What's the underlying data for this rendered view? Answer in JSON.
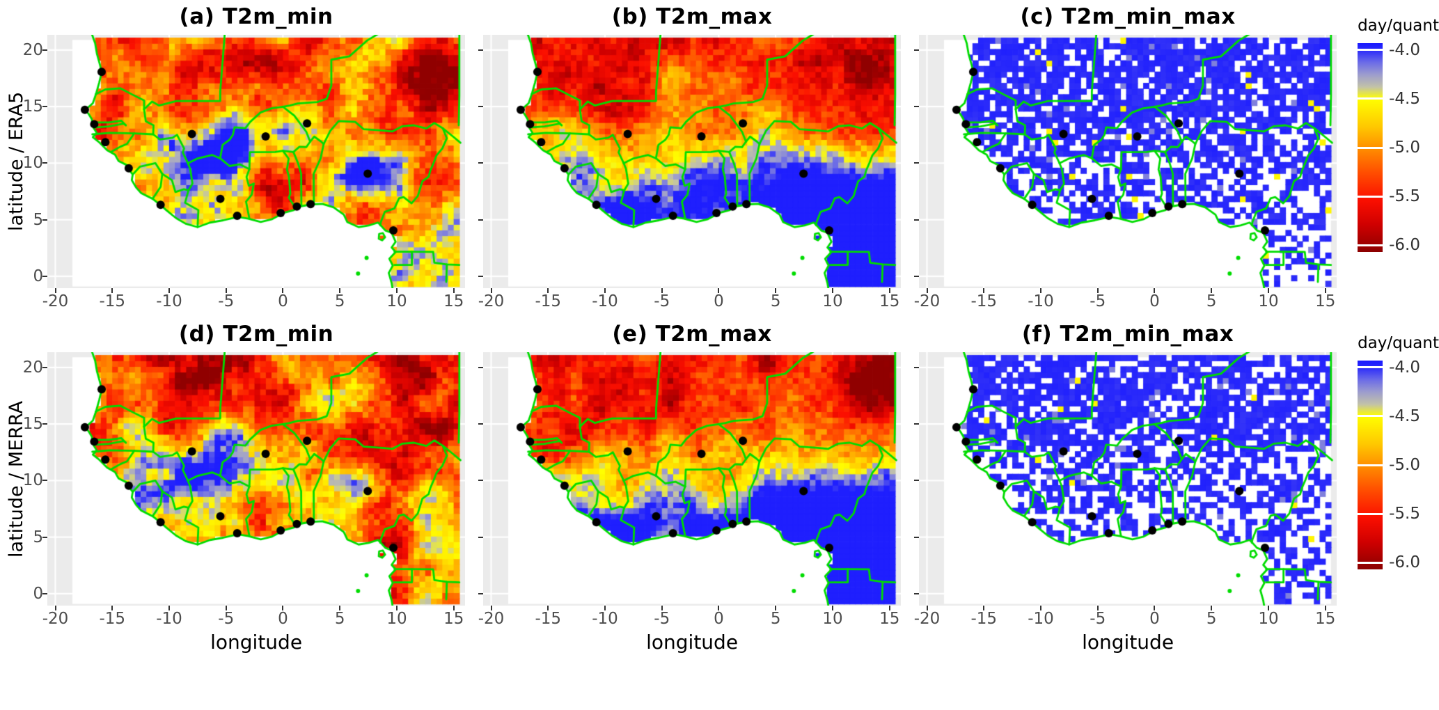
{
  "figure": {
    "rows": [
      {
        "ylabel": "latitude / ERA5",
        "panel_ids": [
          "a",
          "b",
          "c"
        ],
        "show_xlabel": false
      },
      {
        "ylabel": "latitude / MERRA",
        "panel_ids": [
          "d",
          "e",
          "f"
        ],
        "show_xlabel": true
      }
    ]
  },
  "chart_data": {
    "type": "heatmap",
    "description": "Six-panel geographic heatmap figure over West Africa (longitude -20..15, latitude 0..20). Rows compare ERA5 (top) and MERRA (bottom) reanalyses; columns show T2m_min, T2m_max and T2m_min_max CRPS-like scores (day/quant). Green country borders and black station dots overlay each raster. Min/max panels are mostly yellow-orange-red with blue-grey patches; min_max panels are sparse speckled blue near -4.0.",
    "panels": [
      {
        "id": "a",
        "title": "(a) T2m_min",
        "dataset": "ERA5",
        "variable": "T2m_min",
        "pattern": "min",
        "seed": 11,
        "miss_bias": 0
      },
      {
        "id": "b",
        "title": "(b) T2m_max",
        "dataset": "ERA5",
        "variable": "T2m_max",
        "pattern": "max",
        "seed": 21,
        "miss_bias": 0
      },
      {
        "id": "c",
        "title": "(c) T2m_min_max",
        "dataset": "ERA5",
        "variable": "T2m_min_max",
        "pattern": "sparse_blue",
        "seed": 31,
        "miss_bias": 0
      },
      {
        "id": "d",
        "title": "(d) T2m_min",
        "dataset": "MERRA",
        "variable": "T2m_min",
        "pattern": "min",
        "seed": 41,
        "miss_bias": 0
      },
      {
        "id": "e",
        "title": "(e) T2m_max",
        "dataset": "MERRA",
        "variable": "T2m_max",
        "pattern": "max",
        "seed": 51,
        "miss_bias": 0
      },
      {
        "id": "f",
        "title": "(f) T2m_min_max",
        "dataset": "MERRA",
        "variable": "T2m_min_max",
        "pattern": "sparse_blue",
        "seed": 61,
        "miss_bias": 0.05
      }
    ],
    "x_axis": {
      "label": "longitude",
      "ticks": [
        -20,
        -15,
        -10,
        -5,
        0,
        5,
        10,
        15
      ],
      "range": [
        -20.7,
        16.0
      ]
    },
    "y_axis": {
      "ticks": [
        20,
        15,
        10,
        5,
        0
      ],
      "range": [
        -1.05,
        21.35
      ]
    },
    "colorbar": {
      "title": "day/quant",
      "tick_labels": [
        "-4.0",
        "-4.5",
        "-5.0",
        "-5.5",
        "-6.0"
      ],
      "tick_values": [
        -4.0,
        -4.5,
        -5.0,
        -5.5,
        -6.0
      ],
      "value_top": -3.93,
      "value_bottom": -6.07,
      "palette": [
        [
          0.0,
          "#1A1AFF"
        ],
        [
          0.033,
          "#2B2BFA"
        ],
        [
          0.09,
          "#6A6AE8"
        ],
        [
          0.15,
          "#9C9CCE"
        ],
        [
          0.21,
          "#C2C2A8"
        ],
        [
          0.266,
          "#FFFF00"
        ],
        [
          0.4,
          "#FFC800"
        ],
        [
          0.5,
          "#FF9000"
        ],
        [
          0.62,
          "#FF4E00"
        ],
        [
          0.75,
          "#FB0F00"
        ],
        [
          0.87,
          "#CF0000"
        ],
        [
          1.0,
          "#8B0000"
        ]
      ]
    },
    "styles": {
      "border_color": "#00DC00",
      "station_color": "#000000",
      "panel_bg": "#EBEBEB",
      "raster_bg": "#FFFFFF",
      "tick_text": "#4D4D4D"
    },
    "stations": [
      [
        -15.93,
        18.08
      ],
      [
        -17.4,
        14.72
      ],
      [
        -16.58,
        13.45
      ],
      [
        -15.6,
        11.86
      ],
      [
        -13.55,
        9.55
      ],
      [
        -10.75,
        6.32
      ],
      [
        -8.0,
        12.58
      ],
      [
        -5.5,
        6.85
      ],
      [
        -4.02,
        5.35
      ],
      [
        -1.52,
        12.37
      ],
      [
        -0.2,
        5.6
      ],
      [
        1.22,
        6.17
      ],
      [
        2.43,
        6.38
      ],
      [
        2.12,
        13.52
      ],
      [
        7.45,
        9.07
      ],
      [
        9.7,
        4.06
      ]
    ],
    "raster_extent": {
      "lon": [
        -18.5,
        15.5
      ],
      "lat": [
        -0.9,
        20.9
      ],
      "cell_deg": 0.5
    }
  }
}
